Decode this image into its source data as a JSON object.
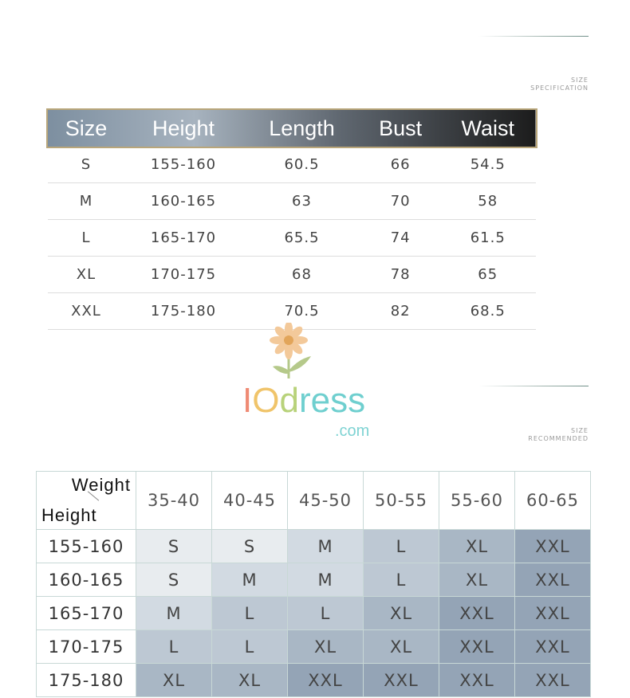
{
  "spec": {
    "label_line1": "SIZE",
    "label_line2": "SPECIFICATION",
    "headers": [
      "Size",
      "Height",
      "Length",
      "Bust",
      "Waist"
    ],
    "rows": [
      [
        "S",
        "155-160",
        "60.5",
        "66",
        "54.5"
      ],
      [
        "M",
        "160-165",
        "63",
        "70",
        "58"
      ],
      [
        "L",
        "165-170",
        "65.5",
        "74",
        "61.5"
      ],
      [
        "XL",
        "170-175",
        "68",
        "78",
        "65"
      ],
      [
        "XXL",
        "175-180",
        "70.5",
        "82",
        "68.5"
      ]
    ]
  },
  "recommend": {
    "label_line1": "SIZE",
    "label_line2": "RECOMMENDED",
    "corner_top": "Weight",
    "corner_bottom": "Height",
    "weights": [
      "35-40",
      "40-45",
      "45-50",
      "50-55",
      "55-60",
      "60-65"
    ],
    "rows": [
      {
        "height": "155-160",
        "sizes": [
          "S",
          "S",
          "M",
          "L",
          "XL",
          "XXL"
        ]
      },
      {
        "height": "160-165",
        "sizes": [
          "S",
          "M",
          "M",
          "L",
          "XL",
          "XXL"
        ]
      },
      {
        "height": "165-170",
        "sizes": [
          "M",
          "L",
          "L",
          "XL",
          "XXL",
          "XXL"
        ]
      },
      {
        "height": "170-175",
        "sizes": [
          "L",
          "L",
          "XL",
          "XL",
          "XXL",
          "XXL"
        ]
      },
      {
        "height": "175-180",
        "sizes": [
          "XL",
          "XL",
          "XXL",
          "XXL",
          "XXL",
          "XXL"
        ]
      }
    ]
  },
  "watermark": "IOdress.com"
}
